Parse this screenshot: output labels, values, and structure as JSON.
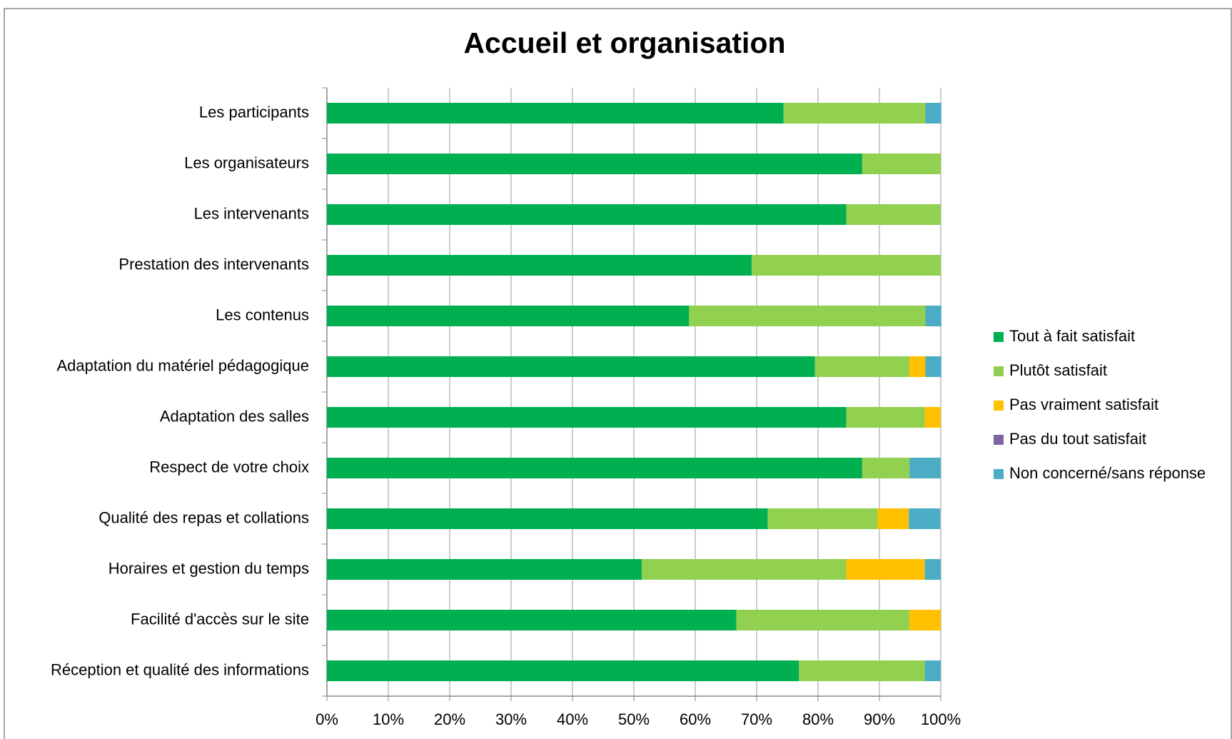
{
  "chart_data": {
    "type": "stacked-barh",
    "title": "Accueil et organisation",
    "categories": [
      "Les participants",
      "Les organisateurs",
      "Les intervenants",
      "Prestation des intervenants",
      "Les contenus",
      "Adaptation du matériel pédagogique",
      "Adaptation des salles",
      "Respect de votre choix",
      "Qualité des repas et collations",
      "Horaires et gestion du temps",
      "Facilité d'accès sur le site",
      "Réception et qualité des informations"
    ],
    "series": [
      {
        "name": "Tout à fait satisfait",
        "color": "#00b050",
        "values": [
          74.4,
          87.2,
          84.6,
          69.2,
          59.0,
          79.5,
          84.6,
          87.2,
          71.8,
          51.3,
          66.7,
          76.9
        ]
      },
      {
        "name": "Plutôt satisfait",
        "color": "#92d050",
        "values": [
          23.1,
          12.8,
          15.4,
          30.8,
          38.5,
          15.4,
          12.8,
          7.7,
          17.9,
          33.3,
          28.2,
          20.5
        ]
      },
      {
        "name": "Pas vraiment satisfait",
        "color": "#ffc000",
        "values": [
          0,
          0,
          0,
          0,
          0,
          2.6,
          2.6,
          0,
          5.1,
          12.8,
          5.1,
          0
        ]
      },
      {
        "name": "Pas du tout satisfait",
        "color": "#8064a2",
        "values": [
          0,
          0,
          0,
          0,
          0,
          0,
          0,
          0,
          0,
          0,
          0,
          0
        ]
      },
      {
        "name": "Non concerné/sans réponse",
        "color": "#4bacc6",
        "values": [
          2.6,
          0,
          0,
          0,
          2.6,
          2.6,
          0,
          5.1,
          5.1,
          2.6,
          0,
          2.6
        ]
      }
    ],
    "xlim": [
      0,
      100
    ],
    "xticks": [
      {
        "value": 0,
        "label": "0%"
      },
      {
        "value": 10,
        "label": "10%"
      },
      {
        "value": 20,
        "label": "20%"
      },
      {
        "value": 30,
        "label": "30%"
      },
      {
        "value": 40,
        "label": "40%"
      },
      {
        "value": 50,
        "label": "50%"
      },
      {
        "value": 60,
        "label": "60%"
      },
      {
        "value": 70,
        "label": "70%"
      },
      {
        "value": 80,
        "label": "80%"
      },
      {
        "value": 90,
        "label": "90%"
      },
      {
        "value": 100,
        "label": "100%"
      }
    ],
    "grid": true,
    "legend": "right"
  }
}
